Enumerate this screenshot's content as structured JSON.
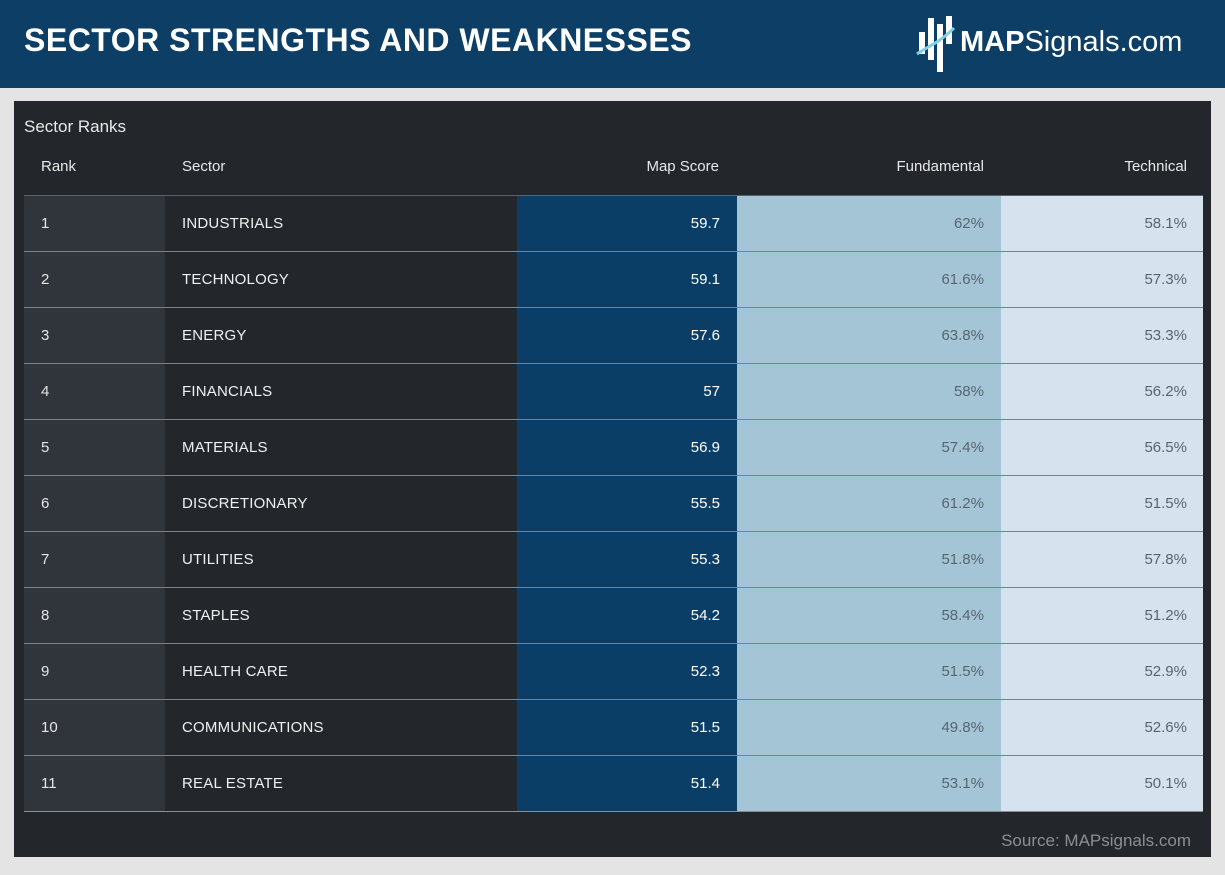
{
  "header": {
    "title": "SECTOR STRENGTHS AND WEAKNESSES",
    "logo_map": "MAP",
    "logo_rest": "Signals.com",
    "bg_color": "#0d3e66"
  },
  "table": {
    "title": "Sector Ranks",
    "columns": {
      "rank": "Rank",
      "sector": "Sector",
      "map_score": "Map Score",
      "fundamental": "Fundamental",
      "technical": "Technical"
    }
  },
  "source": "Source: MAPsignals.com",
  "chart_data": {
    "type": "table",
    "title": "Sector Ranks",
    "columns": [
      "Rank",
      "Sector",
      "Map Score",
      "Fundamental",
      "Technical"
    ],
    "rows": [
      {
        "rank": "1",
        "sector": "INDUSTRIALS",
        "map_score": "59.7",
        "fundamental": "62%",
        "technical": "58.1%"
      },
      {
        "rank": "2",
        "sector": "TECHNOLOGY",
        "map_score": "59.1",
        "fundamental": "61.6%",
        "technical": "57.3%"
      },
      {
        "rank": "3",
        "sector": "ENERGY",
        "map_score": "57.6",
        "fundamental": "63.8%",
        "technical": "53.3%"
      },
      {
        "rank": "4",
        "sector": "FINANCIALS",
        "map_score": "57",
        "fundamental": "58%",
        "technical": "56.2%"
      },
      {
        "rank": "5",
        "sector": "MATERIALS",
        "map_score": "56.9",
        "fundamental": "57.4%",
        "technical": "56.5%"
      },
      {
        "rank": "6",
        "sector": "DISCRETIONARY",
        "map_score": "55.5",
        "fundamental": "61.2%",
        "technical": "51.5%"
      },
      {
        "rank": "7",
        "sector": "UTILITIES",
        "map_score": "55.3",
        "fundamental": "51.8%",
        "technical": "57.8%"
      },
      {
        "rank": "8",
        "sector": "STAPLES",
        "map_score": "54.2",
        "fundamental": "58.4%",
        "technical": "51.2%"
      },
      {
        "rank": "9",
        "sector": "HEALTH CARE",
        "map_score": "52.3",
        "fundamental": "51.5%",
        "technical": "52.9%"
      },
      {
        "rank": "10",
        "sector": "COMMUNICATIONS",
        "map_score": "51.5",
        "fundamental": "49.8%",
        "technical": "52.6%"
      },
      {
        "rank": "11",
        "sector": "REAL ESTATE",
        "map_score": "51.4",
        "fundamental": "53.1%",
        "technical": "50.1%"
      }
    ],
    "column_colors": {
      "rank": "#30343b",
      "sector": "#23272c",
      "map_score": "#0b3e67",
      "fundamental": "#a4c5d6",
      "technical": "#d6e3ee"
    }
  }
}
